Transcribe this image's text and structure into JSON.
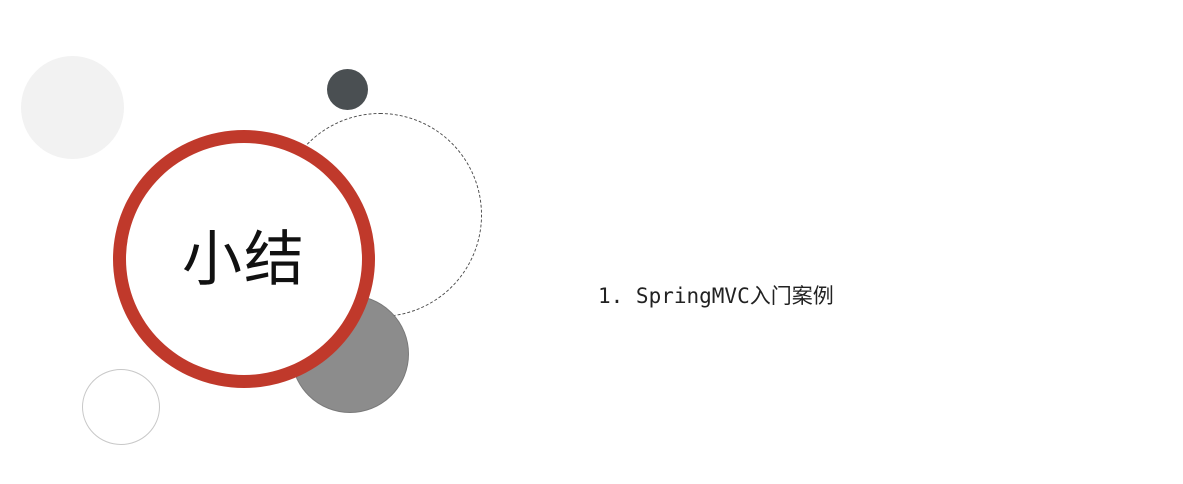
{
  "slide": {
    "title": "小结",
    "items": [
      {
        "text": "1. SpringMVC入门案例"
      }
    ]
  },
  "colors": {
    "accent_ring": "#c0392b",
    "dark_dot": "#4a4f52",
    "gray_disc": "#8c8c8c",
    "light_disc": "#f2f2f2"
  }
}
